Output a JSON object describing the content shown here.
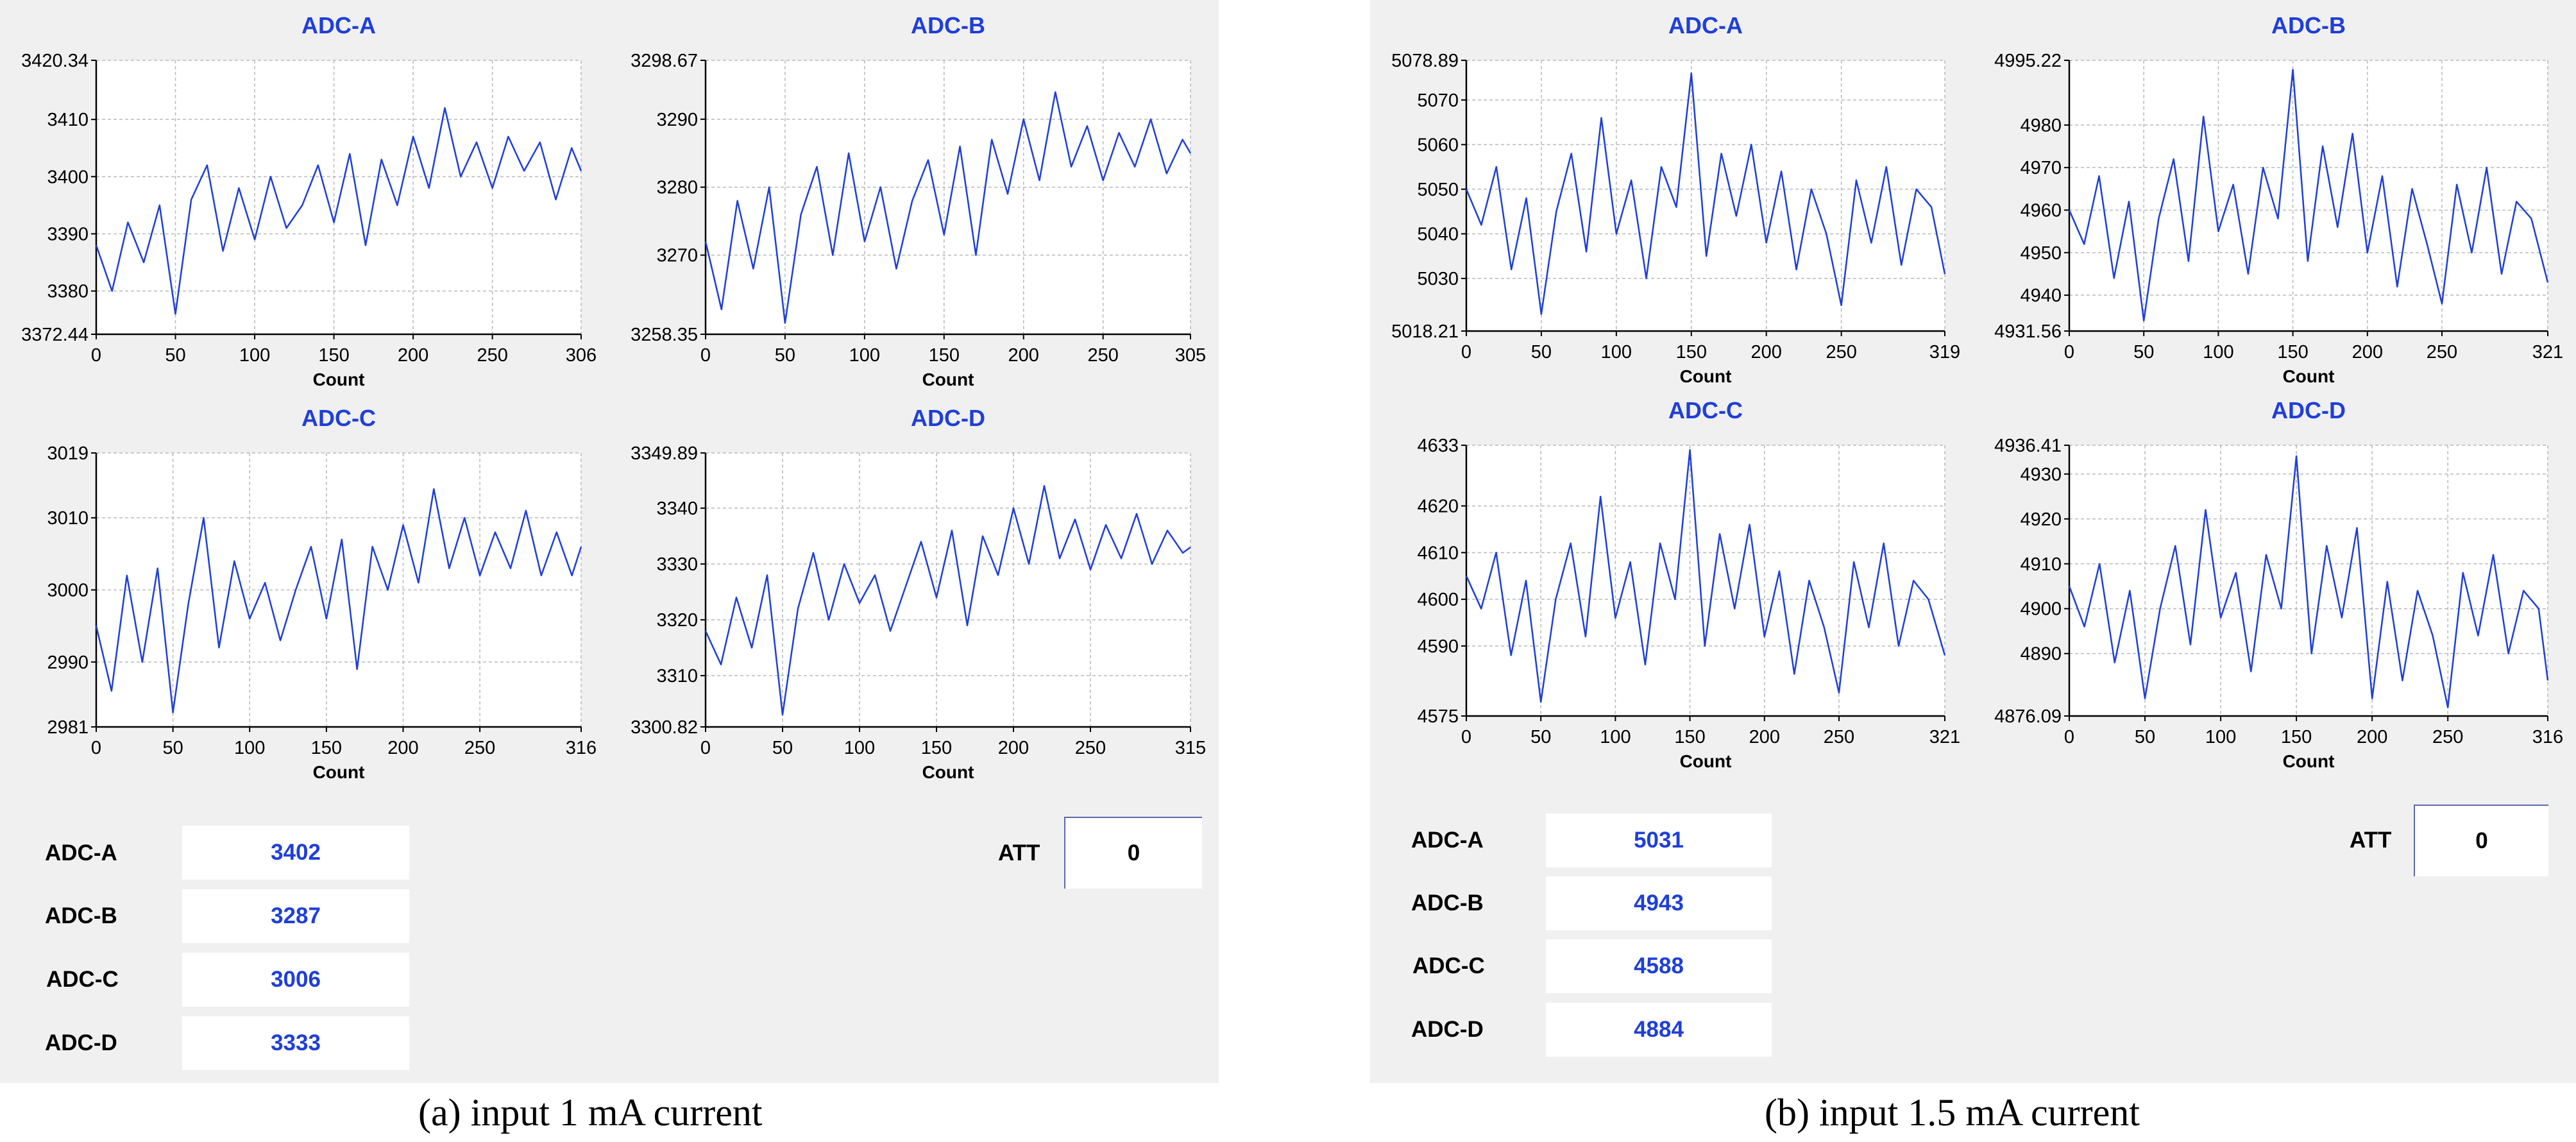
{
  "panels": [
    {
      "id": "a",
      "caption": "(a) input 1 mA current",
      "att": {
        "label": "ATT",
        "value": "0"
      },
      "readouts": [
        {
          "label": "ADC-A",
          "value": "3402"
        },
        {
          "label": "ADC-B",
          "value": "3287"
        },
        {
          "label": "ADC-C",
          "value": "3006"
        },
        {
          "label": "ADC-D",
          "value": "3333"
        }
      ]
    },
    {
      "id": "b",
      "caption": "(b) input 1.5 mA current",
      "att": {
        "label": "ATT",
        "value": "0"
      },
      "readouts": [
        {
          "label": "ADC-A",
          "value": "5031"
        },
        {
          "label": "ADC-B",
          "value": "4943"
        },
        {
          "label": "ADC-C",
          "value": "4588"
        },
        {
          "label": "ADC-D",
          "value": "4884"
        }
      ]
    }
  ],
  "chart_data": [
    {
      "type": "line",
      "panel": "a",
      "title": "ADC-A",
      "xlabel": "Count",
      "ylabel": "",
      "xlim": [
        0,
        306
      ],
      "ylim": [
        3372.44,
        3420.34
      ],
      "xticks": [
        "0",
        "50",
        "100",
        "150",
        "200",
        "250",
        "306"
      ],
      "yticks": [
        "3372.44",
        "3380",
        "3390",
        "3400",
        "3410",
        "3420.34"
      ],
      "color": "#1f3fd8",
      "grid": true,
      "series": [
        {
          "x": [
            0,
            10,
            20,
            30,
            40,
            50,
            60,
            70,
            80,
            90,
            100,
            110,
            120,
            130,
            140,
            150,
            160,
            170,
            180,
            190,
            200,
            210,
            220,
            230,
            240,
            250,
            260,
            270,
            280,
            290,
            300,
            306
          ],
          "y": [
            3388,
            3380,
            3392,
            3385,
            3395,
            3376,
            3396,
            3402,
            3387,
            3398,
            3389,
            3400,
            3391,
            3395,
            3402,
            3392,
            3404,
            3388,
            3403,
            3395,
            3407,
            3398,
            3412,
            3400,
            3406,
            3398,
            3407,
            3401,
            3406,
            3396,
            3405,
            3401
          ]
        }
      ]
    },
    {
      "type": "line",
      "panel": "a",
      "title": "ADC-B",
      "xlabel": "Count",
      "ylabel": "",
      "xlim": [
        0,
        305
      ],
      "ylim": [
        3258.35,
        3298.67
      ],
      "xticks": [
        "0",
        "50",
        "100",
        "150",
        "200",
        "250",
        "305"
      ],
      "yticks": [
        "3258.35",
        "3270",
        "3280",
        "3290",
        "3298.67"
      ],
      "color": "#1f3fd8",
      "grid": true,
      "series": [
        {
          "x": [
            0,
            10,
            20,
            30,
            40,
            50,
            60,
            70,
            80,
            90,
            100,
            110,
            120,
            130,
            140,
            150,
            160,
            170,
            180,
            190,
            200,
            210,
            220,
            230,
            240,
            250,
            260,
            270,
            280,
            290,
            300,
            305
          ],
          "y": [
            3272,
            3262,
            3278,
            3268,
            3280,
            3260,
            3276,
            3283,
            3270,
            3285,
            3272,
            3280,
            3268,
            3278,
            3284,
            3273,
            3286,
            3270,
            3287,
            3279,
            3290,
            3281,
            3294,
            3283,
            3289,
            3281,
            3288,
            3283,
            3290,
            3282,
            3287,
            3285
          ]
        }
      ]
    },
    {
      "type": "line",
      "panel": "a",
      "title": "ADC-C",
      "xlabel": "Count",
      "ylabel": "",
      "xlim": [
        0,
        316
      ],
      "ylim": [
        2981,
        3019
      ],
      "xticks": [
        "0",
        "50",
        "100",
        "150",
        "200",
        "250",
        "316"
      ],
      "yticks": [
        "2981",
        "2990",
        "3000",
        "3010",
        "3019"
      ],
      "color": "#1f3fd8",
      "grid": true,
      "series": [
        {
          "x": [
            0,
            10,
            20,
            30,
            40,
            50,
            60,
            70,
            80,
            90,
            100,
            110,
            120,
            130,
            140,
            150,
            160,
            170,
            180,
            190,
            200,
            210,
            220,
            230,
            240,
            250,
            260,
            270,
            280,
            290,
            300,
            310,
            316
          ],
          "y": [
            2995,
            2986,
            3002,
            2990,
            3003,
            2983,
            2998,
            3010,
            2992,
            3004,
            2996,
            3001,
            2993,
            3000,
            3006,
            2996,
            3007,
            2989,
            3006,
            3000,
            3009,
            3001,
            3014,
            3003,
            3010,
            3002,
            3008,
            3003,
            3011,
            3002,
            3008,
            3002,
            3006
          ]
        }
      ]
    },
    {
      "type": "line",
      "panel": "a",
      "title": "ADC-D",
      "xlabel": "Count",
      "ylabel": "",
      "xlim": [
        0,
        315
      ],
      "ylim": [
        3300.82,
        3349.89
      ],
      "xticks": [
        "0",
        "50",
        "100",
        "150",
        "200",
        "250",
        "315"
      ],
      "yticks": [
        "3300.82",
        "3310",
        "3320",
        "3330",
        "3340",
        "3349.89"
      ],
      "color": "#1f3fd8",
      "grid": true,
      "series": [
        {
          "x": [
            0,
            10,
            20,
            30,
            40,
            50,
            60,
            70,
            80,
            90,
            100,
            110,
            120,
            130,
            140,
            150,
            160,
            170,
            180,
            190,
            200,
            210,
            220,
            230,
            240,
            250,
            260,
            270,
            280,
            290,
            300,
            310,
            315
          ],
          "y": [
            3318,
            3312,
            3324,
            3315,
            3328,
            3303,
            3322,
            3332,
            3320,
            3330,
            3323,
            3328,
            3318,
            3326,
            3334,
            3324,
            3336,
            3319,
            3335,
            3328,
            3340,
            3330,
            3344,
            3331,
            3338,
            3329,
            3337,
            3331,
            3339,
            3330,
            3336,
            3332,
            3333
          ]
        }
      ]
    },
    {
      "type": "line",
      "panel": "b",
      "title": "ADC-A",
      "xlabel": "Count",
      "ylabel": "",
      "xlim": [
        0,
        319
      ],
      "ylim": [
        5018.21,
        5078.89
      ],
      "xticks": [
        "0",
        "50",
        "100",
        "150",
        "200",
        "250",
        "319"
      ],
      "yticks": [
        "5018.21",
        "5030",
        "5040",
        "5050",
        "5060",
        "5070",
        "5078.89"
      ],
      "color": "#1f3fd8",
      "grid": true,
      "series": [
        {
          "x": [
            0,
            10,
            20,
            30,
            40,
            50,
            60,
            70,
            80,
            90,
            100,
            110,
            120,
            130,
            140,
            150,
            160,
            170,
            180,
            190,
            200,
            210,
            220,
            230,
            240,
            250,
            260,
            270,
            280,
            290,
            300,
            310,
            319
          ],
          "y": [
            5050,
            5042,
            5055,
            5032,
            5048,
            5022,
            5045,
            5058,
            5036,
            5066,
            5040,
            5052,
            5030,
            5055,
            5046,
            5076,
            5035,
            5058,
            5044,
            5060,
            5038,
            5054,
            5032,
            5050,
            5040,
            5024,
            5052,
            5038,
            5055,
            5033,
            5050,
            5046,
            5031
          ]
        }
      ]
    },
    {
      "type": "line",
      "panel": "b",
      "title": "ADC-B",
      "xlabel": "Count",
      "ylabel": "",
      "xlim": [
        0,
        321
      ],
      "ylim": [
        4931.56,
        4995.22
      ],
      "xticks": [
        "0",
        "50",
        "100",
        "150",
        "200",
        "250",
        "321"
      ],
      "yticks": [
        "4931.56",
        "4940",
        "4950",
        "4960",
        "4970",
        "4980",
        "4995.22"
      ],
      "color": "#1f3fd8",
      "grid": true,
      "series": [
        {
          "x": [
            0,
            10,
            20,
            30,
            40,
            50,
            60,
            70,
            80,
            90,
            100,
            110,
            120,
            130,
            140,
            150,
            160,
            170,
            180,
            190,
            200,
            210,
            220,
            230,
            240,
            250,
            260,
            270,
            280,
            290,
            300,
            310,
            321
          ],
          "y": [
            4960,
            4952,
            4968,
            4944,
            4962,
            4934,
            4958,
            4972,
            4948,
            4982,
            4955,
            4966,
            4945,
            4970,
            4958,
            4993,
            4948,
            4975,
            4956,
            4978,
            4950,
            4968,
            4942,
            4965,
            4952,
            4938,
            4966,
            4950,
            4970,
            4945,
            4962,
            4958,
            4943
          ]
        }
      ]
    },
    {
      "type": "line",
      "panel": "b",
      "title": "ADC-C",
      "xlabel": "Count",
      "ylabel": "",
      "xlim": [
        0,
        321
      ],
      "ylim": [
        4575,
        4633
      ],
      "xticks": [
        "0",
        "50",
        "100",
        "150",
        "200",
        "250",
        "321"
      ],
      "yticks": [
        "4575",
        "4590",
        "4600",
        "4610",
        "4620",
        "4633"
      ],
      "color": "#1f3fd8",
      "grid": true,
      "series": [
        {
          "x": [
            0,
            10,
            20,
            30,
            40,
            50,
            60,
            70,
            80,
            90,
            100,
            110,
            120,
            130,
            140,
            150,
            160,
            170,
            180,
            190,
            200,
            210,
            220,
            230,
            240,
            250,
            260,
            270,
            280,
            290,
            300,
            310,
            321
          ],
          "y": [
            4605,
            4598,
            4610,
            4588,
            4604,
            4578,
            4600,
            4612,
            4592,
            4622,
            4596,
            4608,
            4586,
            4612,
            4600,
            4632,
            4590,
            4614,
            4598,
            4616,
            4592,
            4606,
            4584,
            4604,
            4594,
            4580,
            4608,
            4594,
            4612,
            4590,
            4604,
            4600,
            4588
          ]
        }
      ]
    },
    {
      "type": "line",
      "panel": "b",
      "title": "ADC-D",
      "xlabel": "Count",
      "ylabel": "",
      "xlim": [
        0,
        316
      ],
      "ylim": [
        4876.09,
        4936.41
      ],
      "xticks": [
        "0",
        "50",
        "100",
        "150",
        "200",
        "250",
        "316"
      ],
      "yticks": [
        "4876.09",
        "4890",
        "4900",
        "4910",
        "4920",
        "4930",
        "4936.41"
      ],
      "color": "#1f3fd8",
      "grid": true,
      "series": [
        {
          "x": [
            0,
            10,
            20,
            30,
            40,
            50,
            60,
            70,
            80,
            90,
            100,
            110,
            120,
            130,
            140,
            150,
            160,
            170,
            180,
            190,
            200,
            210,
            220,
            230,
            240,
            250,
            260,
            270,
            280,
            290,
            300,
            310,
            316
          ],
          "y": [
            4905,
            4896,
            4910,
            4888,
            4904,
            4880,
            4900,
            4914,
            4892,
            4922,
            4898,
            4908,
            4886,
            4912,
            4900,
            4934,
            4890,
            4914,
            4898,
            4918,
            4880,
            4906,
            4884,
            4904,
            4894,
            4878,
            4908,
            4894,
            4912,
            4890,
            4904,
            4900,
            4884
          ]
        }
      ]
    }
  ]
}
